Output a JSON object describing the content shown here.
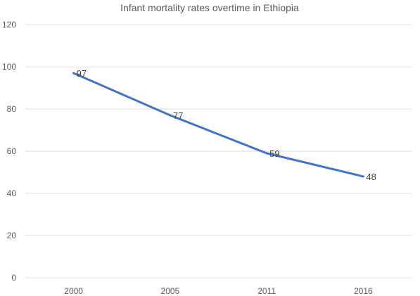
{
  "chart_data": {
    "type": "line",
    "title": "Infant mortality rates overtime in Ethiopia",
    "xlabel": "",
    "ylabel": "",
    "categories": [
      "2000",
      "2005",
      "2011",
      "2016"
    ],
    "series": [
      {
        "values": [
          97,
          77,
          59,
          48
        ],
        "color": "#4472c4"
      }
    ],
    "data_labels": [
      "97",
      "77",
      "59",
      "48"
    ],
    "ylim": [
      0,
      120
    ],
    "yticks": [
      0,
      20,
      40,
      60,
      80,
      100,
      120
    ],
    "ytick_labels": [
      "0",
      "20",
      "40",
      "60",
      "80",
      "100",
      "120"
    ],
    "grid": true,
    "legend": "none"
  }
}
